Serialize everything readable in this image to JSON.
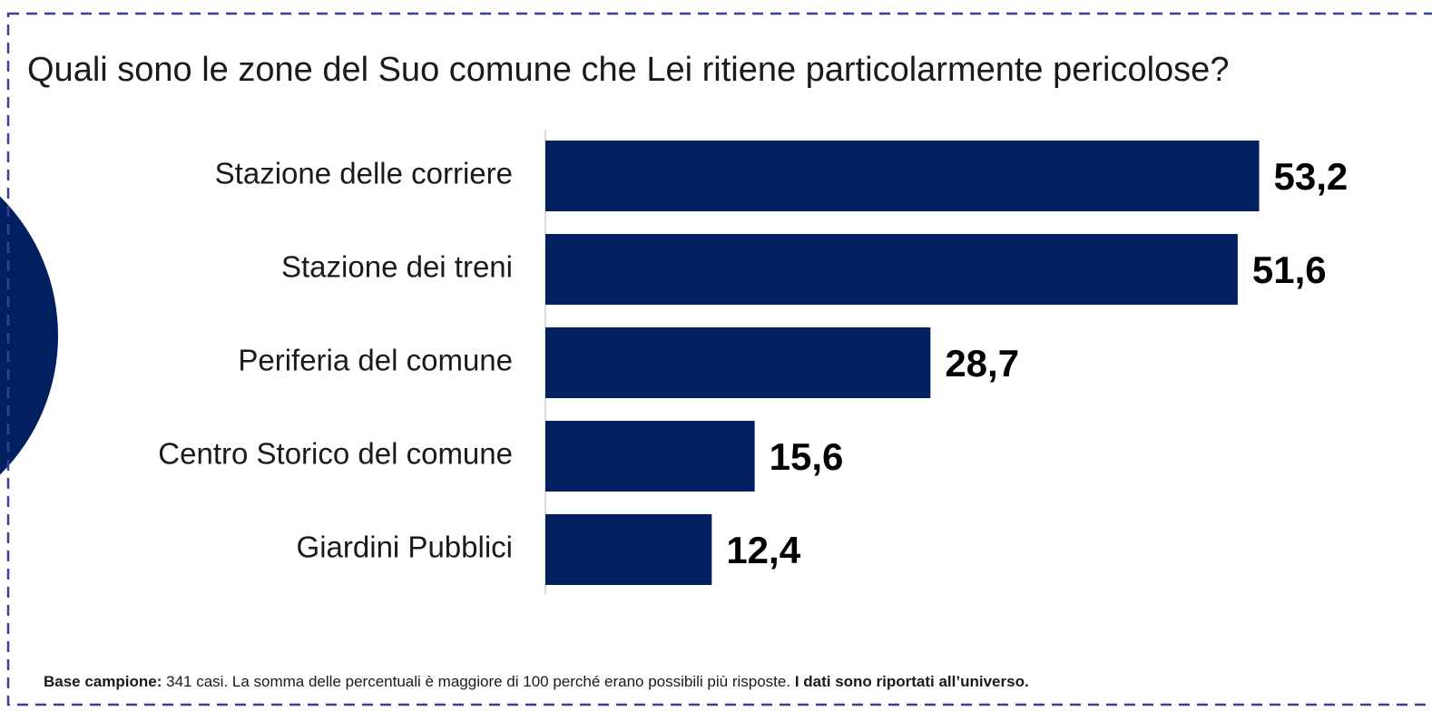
{
  "chart_data": {
    "type": "barh",
    "title": "Quali sono le zone del Suo comune che Lei ritiene particolarmente pericolose?",
    "categories": [
      "Stazione delle corriere",
      "Stazione dei treni",
      "Periferia del comune",
      "Centro Storico del comune",
      "Giardini Pubblici"
    ],
    "values": [
      53.2,
      51.6,
      28.7,
      15.6,
      12.4
    ],
    "value_labels": [
      "53,2",
      "51,6",
      "28,7",
      "15,6",
      "12,4"
    ],
    "color": "#002060",
    "xlim": [
      0,
      65
    ],
    "footnote": {
      "label": "Base campione:",
      "text": "341 casi. La somma delle percentuali è maggiore di 100 perché erano possibili più risposte.",
      "emphasis": "I dati sono riportati all’universo."
    }
  }
}
